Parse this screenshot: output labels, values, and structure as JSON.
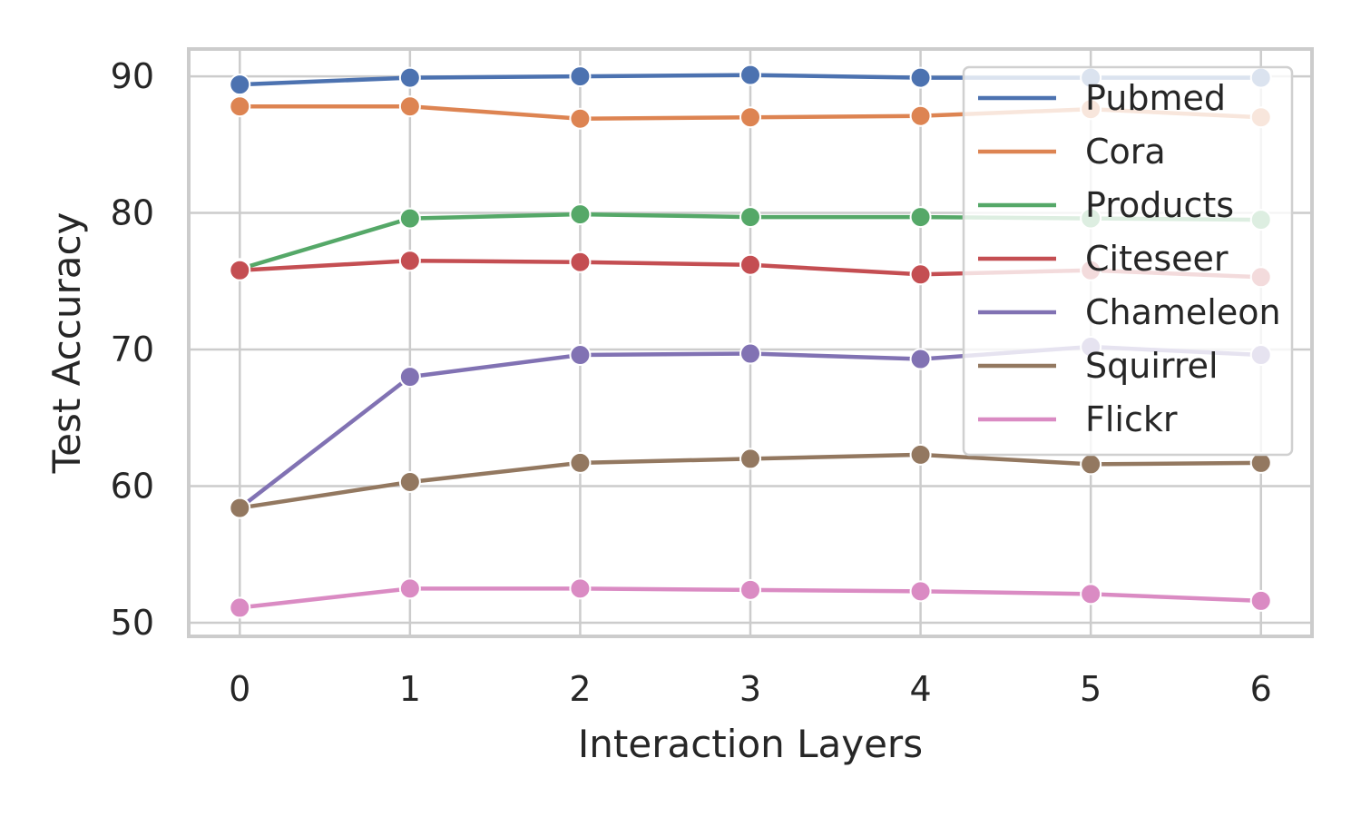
{
  "chart_data": {
    "type": "line",
    "title": "",
    "xlabel": "Interaction Layers",
    "ylabel": "Test Accuracy",
    "x": [
      0,
      1,
      2,
      3,
      4,
      5,
      6
    ],
    "xticks": [
      "0",
      "1",
      "2",
      "3",
      "4",
      "5",
      "6"
    ],
    "yticks": [
      "50",
      "60",
      "70",
      "80",
      "90"
    ],
    "xlim": [
      -0.3,
      6.3
    ],
    "ylim": [
      49,
      92
    ],
    "grid": true,
    "legend_position": "upper-right",
    "series": [
      {
        "name": "Pubmed",
        "color": "#4c72b0",
        "values": [
          89.4,
          89.9,
          90.0,
          90.1,
          89.9,
          89.9,
          89.9
        ]
      },
      {
        "name": "Cora",
        "color": "#dd8452",
        "values": [
          87.8,
          87.8,
          86.9,
          87.0,
          87.1,
          87.6,
          87.0
        ]
      },
      {
        "name": "Products",
        "color": "#55a868",
        "values": [
          75.9,
          79.6,
          79.9,
          79.7,
          79.7,
          79.6,
          79.5
        ]
      },
      {
        "name": "Citeseer",
        "color": "#c44e52",
        "values": [
          75.8,
          76.5,
          76.4,
          76.2,
          75.5,
          75.8,
          75.3
        ]
      },
      {
        "name": "Chameleon",
        "color": "#8172b3",
        "values": [
          58.4,
          68.0,
          69.6,
          69.7,
          69.3,
          70.2,
          69.6
        ]
      },
      {
        "name": "Squirrel",
        "color": "#937860",
        "values": [
          58.4,
          60.3,
          61.7,
          62.0,
          62.3,
          61.6,
          61.7
        ]
      },
      {
        "name": "Flickr",
        "color": "#da8bc3",
        "values": [
          51.1,
          52.5,
          52.5,
          52.4,
          52.3,
          52.1,
          51.6
        ]
      }
    ]
  }
}
